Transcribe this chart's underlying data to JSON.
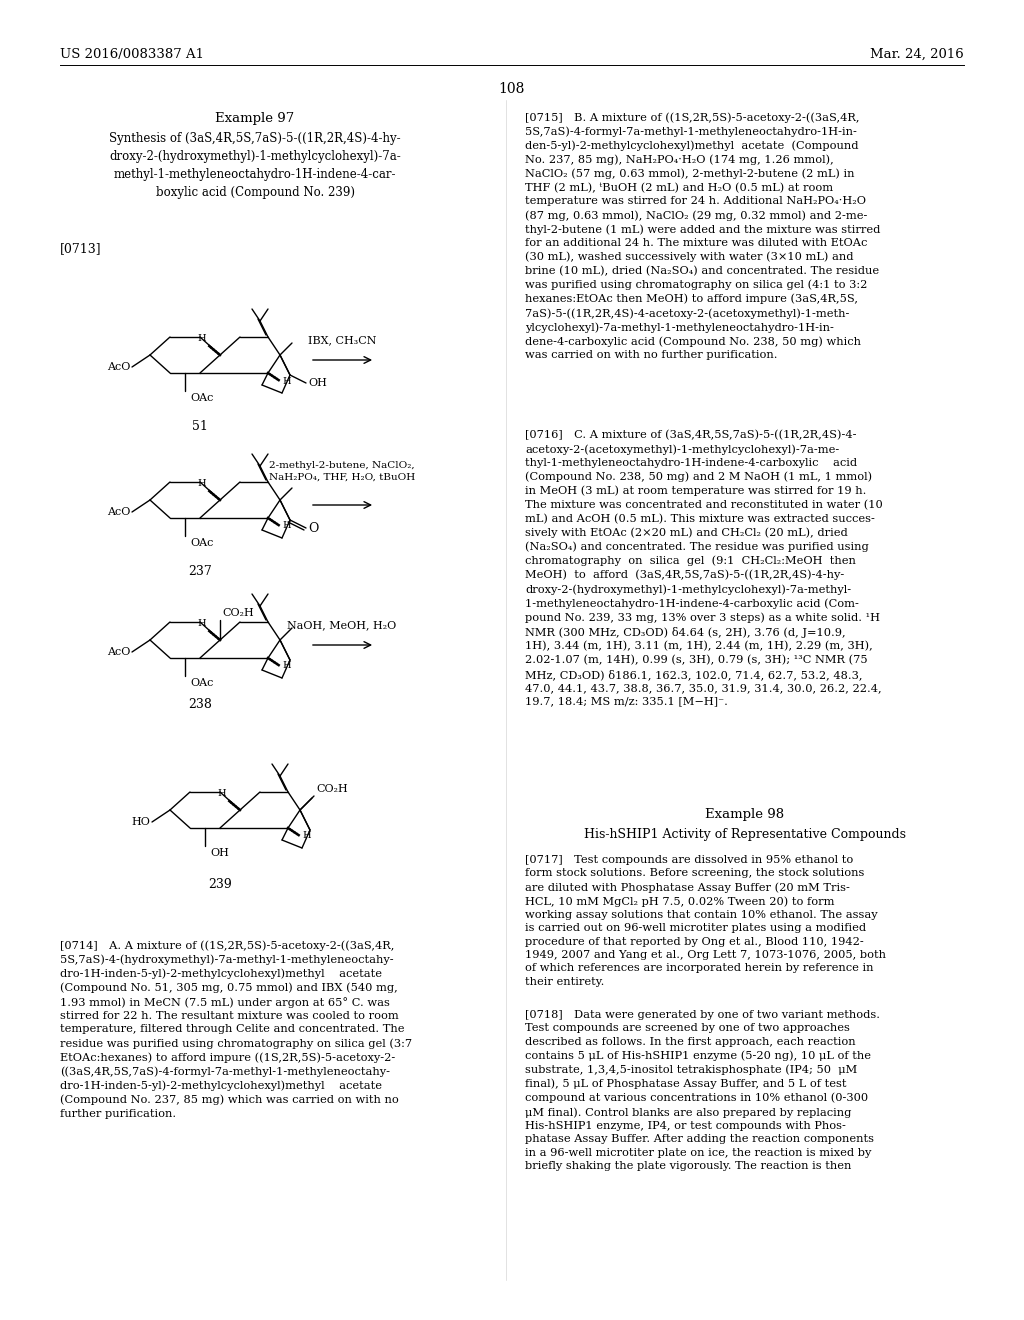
{
  "background_color": "#ffffff",
  "header_left": "US 2016/0083387 A1",
  "header_right": "Mar. 24, 2016",
  "page_number": "108",
  "example_title": "Example 97",
  "synthesis_title": "Synthesis of (3aS,4R,5S,7aS)-5-((1R,2R,4S)-4-hy-\ndroxy-2-(hydroxymethyl)-1-methylcyclohexyl)-7a-\nmethyl-1-methyleneoctahydro-1H-indene-4-car-\nboxylic acid (Compound No. 239)",
  "paragraph_0713": "[0713]",
  "reagent1": "IBX, CH₃CN",
  "reagent2": "2-methyl-2-butene, NaClO₂,\nNaH₂PO₄, THF, H₂O, tBuOH",
  "reagent3": "NaOH, MeOH, H₂O",
  "right_col_texts": [
    "[0715] B. A mixture of ((1S,2R,5S)-5-acetoxy-2-((3aS,4R,\n5S,7aS)-4-formyl-7a-methyl-1-methyleneoctahydro-1H-in-\nden-5-yl)-2-methylcyclohexyl)methyl  acetate  (Compound\nNo. 237, 85 mg), NaH₂PO₄·H₂O (174 mg, 1.26 mmol),\nNaClO₂ (57 mg, 0.63 mmol), 2-methyl-2-butene (2 mL) in\nTHF (2 mL), ᵗBuOH (2 mL) and H₂O (0.5 mL) at room\ntemperature was stirred for 24 h. Additional NaH₂PO₄·H₂O\n(87 mg, 0.63 mmol), NaClO₂ (29 mg, 0.32 mmol) and 2-me-\nthyl-2-butene (1 mL) were added and the mixture was stirred\nfor an additional 24 h. The mixture was diluted with EtOAc\n(30 mL), washed successively with water (3×10 mL) and\nbrine (10 mL), dried (Na₂SO₄) and concentrated. The residue\nwas purified using chromatography on silica gel (4:1 to 3:2\nhexanes:EtOAc then MeOH) to afford impure (3aS,4R,5S,\n7aS)-5-((1R,2R,4S)-4-acetoxy-2-(acetoxymethyl)-1-meth-\nylcyclohexyl)-7a-methyl-1-methyleneoctahydro-1H-in-\ndene-4-carboxylic acid (Compound No. 238, 50 mg) which\nwas carried on with no further purification.",
    "[0716] C. A mixture of (3aS,4R,5S,7aS)-5-((1R,2R,4S)-4-\nacetoxy-2-(acetoxymethyl)-1-methylcyclohexyl)-7a-me-\nthyl-1-methyleneoctahydro-1H-indene-4-carboxylic    acid\n(Compound No. 238, 50 mg) and 2 M NaOH (1 mL, 1 mmol)\nin MeOH (3 mL) at room temperature was stirred for 19 h.\nThe mixture was concentrated and reconstituted in water (10\nmL) and AcOH (0.5 mL). This mixture was extracted succes-\nsively with EtOAc (2×20 mL) and CH₂Cl₂ (20 mL), dried\n(Na₂SO₄) and concentrated. The residue was purified using\nchromatography  on  silica  gel  (9:1  CH₂Cl₂:MeOH  then\nMeOH)  to  afford  (3aS,4R,5S,7aS)-5-((1R,2R,4S)-4-hy-\ndroxy-2-(hydroxymethyl)-1-methylcyclohexyl)-7a-methyl-\n1-methyleneoctahydro-1H-indene-4-carboxylic acid (Com-\npound No. 239, 33 mg, 13% over 3 steps) as a white solid. ¹H\nNMR (300 MHz, CD₃OD) δ4.64 (s, 2H), 3.76 (d, J=10.9,\n1H), 3.44 (m, 1H), 3.11 (m, 1H), 2.44 (m, 1H), 2.29 (m, 3H),\n2.02-1.07 (m, 14H), 0.99 (s, 3H), 0.79 (s, 3H); ¹³C NMR (75\nMHz, CD₃OD) δ186.1, 162.3, 102.0, 71.4, 62.7, 53.2, 48.3,\n47.0, 44.1, 43.7, 38.8, 36.7, 35.0, 31.9, 31.4, 30.0, 26.2, 22.4,\n19.7, 18.4; MS m/z: 335.1 [M−H]⁻.",
    "Example 98",
    "His-hSHIP1 Activity of Representative Compounds",
    "[0717] Test compounds are dissolved in 95% ethanol to\nform stock solutions. Before screening, the stock solutions\nare diluted with Phosphatase Assay Buffer (20 mM Tris-\nHCL, 10 mM MgCl₂ pH 7.5, 0.02% Tween 20) to form\nworking assay solutions that contain 10% ethanol. The assay\nis carried out on 96-well microtiter plates using a modified\nprocedure of that reported by Ong et al., Blood 110, 1942-\n1949, 2007 and Yang et al., Org Lett 7, 1073-1076, 2005, both\nof which references are incorporated herein by reference in\ntheir entirety.",
    "[0718] Data were generated by one of two variant methods.\nTest compounds are screened by one of two approaches\ndescribed as follows. In the first approach, each reaction\ncontains 5 μL of His-hSHIP1 enzyme (5-20 ng), 10 μL of the\nsubstrate, 1,3,4,5-inositol tetrakisphosphate (IP4; 50  μM\nfinal), 5 μL of Phosphatase Assay Buffer, and 5 L of test\ncompound at various concentrations in 10% ethanol (0-300\nμM final). Control blanks are also prepared by replacing\nHis-hSHIP1 enzyme, IP4, or test compounds with Phos-\nphatase Assay Buffer. After adding the reaction components\nin a 96-well microtiter plate on ice, the reaction is mixed by\nbriefly shaking the plate vigorously. The reaction is then"
  ],
  "left_bottom_text": "[0714] A. A mixture of ((1S,2R,5S)-5-acetoxy-2-((3aS,4R,\n5S,7aS)-4-(hydroxymethyl)-7a-methyl-1-methyleneoctahy-\ndro-1H-inden-5-yl)-2-methylcyclohexyl)methyl    acetate\n(Compound No. 51, 305 mg, 0.75 mmol) and IBX (540 mg,\n1.93 mmol) in MeCN (7.5 mL) under argon at 65° C. was\nstirred for 22 h. The resultant mixture was cooled to room\ntemperature, filtered through Celite and concentrated. The\nresidue was purified using chromatography on silica gel (3:7\nEtOAc:hexanes) to afford impure ((1S,2R,5S)-5-acetoxy-2-\n((3aS,4R,5S,7aS)-4-formyl-7a-methyl-1-methyleneoctahy-\ndro-1H-inden-5-yl)-2-methylcyclohexyl)methyl    acetate\n(Compound No. 237, 85 mg) which was carried on with no\nfurther purification."
}
